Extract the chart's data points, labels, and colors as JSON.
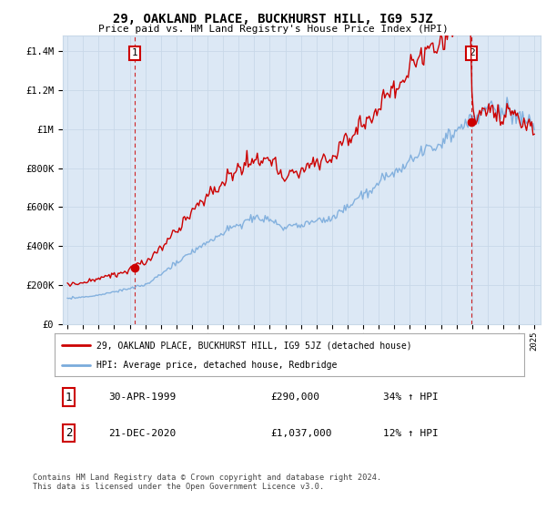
{
  "title": "29, OAKLAND PLACE, BUCKHURST HILL, IG9 5JZ",
  "subtitle": "Price paid vs. HM Land Registry's House Price Index (HPI)",
  "ylabel_ticks": [
    "£0",
    "£200K",
    "£400K",
    "£600K",
    "£800K",
    "£1M",
    "£1.2M",
    "£1.4M"
  ],
  "ytick_values": [
    0,
    200000,
    400000,
    600000,
    800000,
    1000000,
    1200000,
    1400000
  ],
  "ylim": [
    0,
    1480000
  ],
  "xlim_start": 1994.7,
  "xlim_end": 2025.4,
  "red_line_color": "#cc0000",
  "blue_line_color": "#7aabdc",
  "marker_color": "#cc0000",
  "dashed_line_color": "#cc0000",
  "grid_color": "#c8d8e8",
  "background_color": "#dce8f5",
  "plot_background": "#ffffff",
  "legend_label_red": "29, OAKLAND PLACE, BUCKHURST HILL, IG9 5JZ (detached house)",
  "legend_label_blue": "HPI: Average price, detached house, Redbridge",
  "transaction1_date": "30-APR-1999",
  "transaction1_price": "£290,000",
  "transaction1_hpi": "34% ↑ HPI",
  "transaction2_date": "21-DEC-2020",
  "transaction2_price": "£1,037,000",
  "transaction2_hpi": "12% ↑ HPI",
  "footer": "Contains HM Land Registry data © Crown copyright and database right 2024.\nThis data is licensed under the Open Government Licence v3.0.",
  "transaction1_year": 1999.33,
  "transaction2_year": 2020.97,
  "transaction1_price_val": 290000,
  "transaction2_price_val": 1037000
}
